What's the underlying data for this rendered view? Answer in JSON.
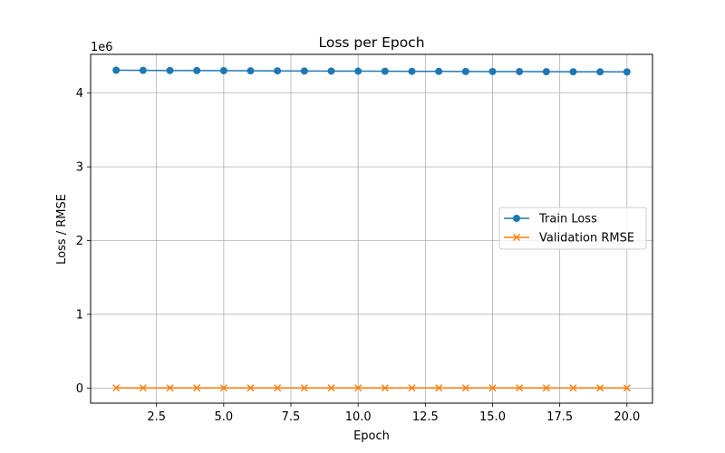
{
  "chart_data": {
    "type": "line",
    "title": "Loss per Epoch",
    "xlabel": "Epoch",
    "ylabel": "Loss / RMSE",
    "y_offset_label": "1e6",
    "xlim": [
      0.05,
      20.95
    ],
    "ylim": [
      -205000,
      4525000
    ],
    "x_ticks": [
      2.5,
      5.0,
      7.5,
      10.0,
      12.5,
      15.0,
      17.5,
      20.0
    ],
    "x_tick_labels": [
      "2.5",
      "5.0",
      "7.5",
      "10.0",
      "12.5",
      "15.0",
      "17.5",
      "20.0"
    ],
    "y_ticks": [
      0,
      1000000,
      2000000,
      3000000,
      4000000
    ],
    "y_tick_labels": [
      "0",
      "1",
      "2",
      "3",
      "4"
    ],
    "grid": true,
    "legend_position": "center-right",
    "x": [
      1,
      2,
      3,
      4,
      5,
      6,
      7,
      8,
      9,
      10,
      11,
      12,
      13,
      14,
      15,
      16,
      17,
      18,
      19,
      20
    ],
    "series": [
      {
        "name": "Train Loss",
        "color": "#1f77b4",
        "marker": "circle",
        "values": [
          4310000,
          4308000,
          4306000,
          4305000,
          4304000,
          4302000,
          4301000,
          4299000,
          4298000,
          4297000,
          4296000,
          4295000,
          4294000,
          4293000,
          4292000,
          4291000,
          4290000,
          4289000,
          4288000,
          4287000
        ]
      },
      {
        "name": "Validation RMSE",
        "color": "#ff7f0e",
        "marker": "x",
        "values": [
          2100,
          2090,
          2080,
          2070,
          2060,
          2050,
          2040,
          2030,
          2020,
          2010,
          2000,
          1990,
          1980,
          1970,
          1960,
          1950,
          1940,
          1930,
          1920,
          800
        ]
      }
    ]
  }
}
